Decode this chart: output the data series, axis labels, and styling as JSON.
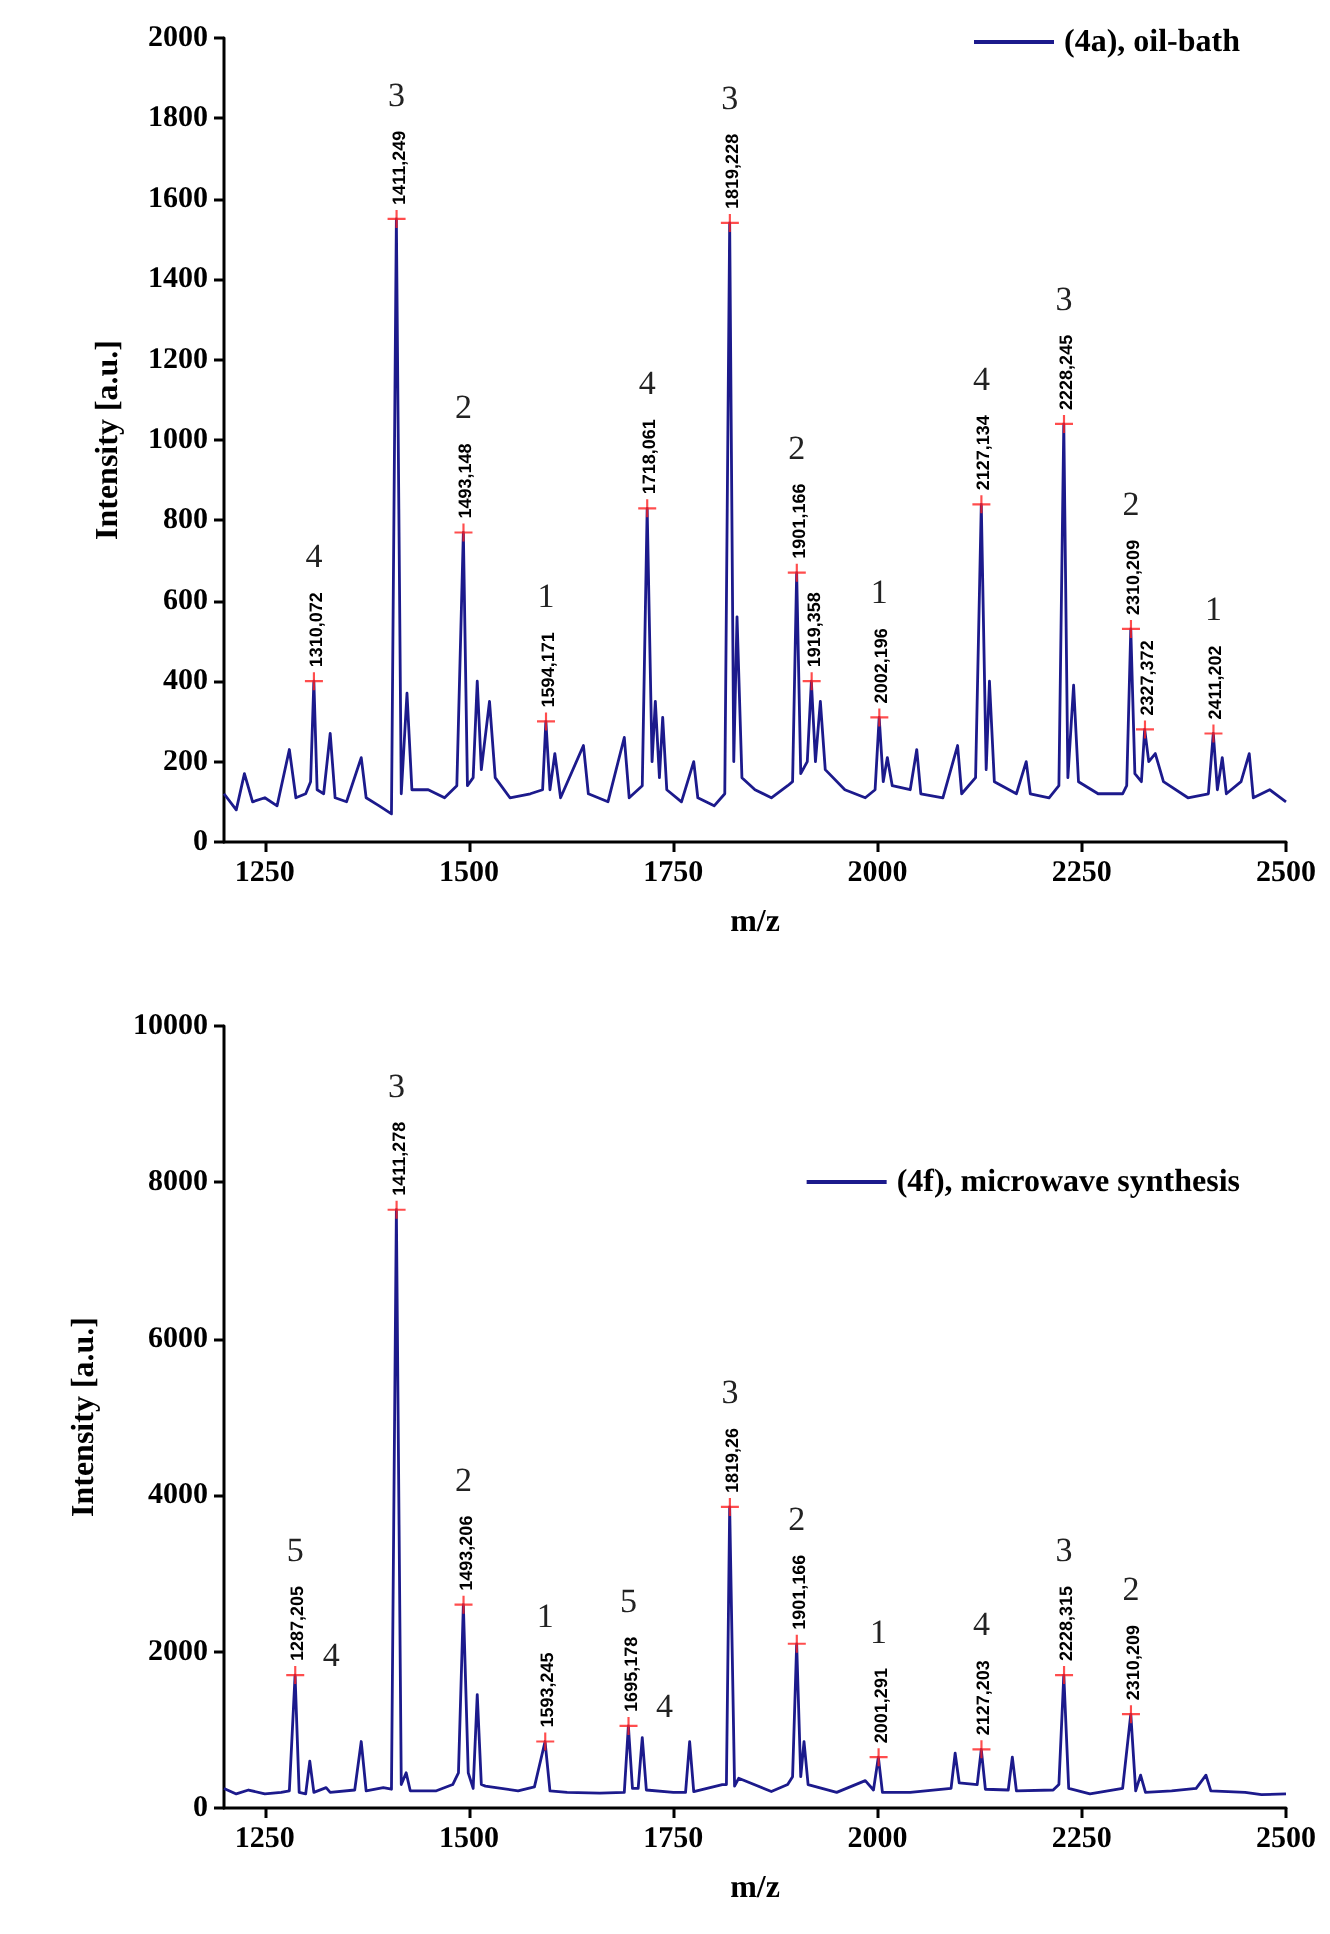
{
  "chart_data": [
    {
      "type": "line",
      "xlabel": "m/z",
      "ylabel": "Intensity [a.u.]",
      "xlim": [
        1200,
        2500
      ],
      "xticks": [
        1250,
        1500,
        1750,
        2000,
        2250,
        2500
      ],
      "ylim": [
        0,
        2000
      ],
      "yticks": [
        0,
        200,
        400,
        600,
        800,
        1000,
        1200,
        1400,
        1600,
        1800,
        2000
      ],
      "legend": "top right",
      "series": [
        {
          "name": "(4a), oil-bath",
          "color": "#1c1a8c",
          "x": [
            1200,
            1215,
            1225,
            1235,
            1250,
            1265,
            1280,
            1288,
            1300,
            1306,
            1310,
            1314,
            1322,
            1330,
            1336,
            1350,
            1368,
            1374,
            1390,
            1405,
            1411,
            1417,
            1424,
            1430,
            1450,
            1470,
            1485,
            1493,
            1498,
            1505,
            1510,
            1515,
            1525,
            1532,
            1550,
            1575,
            1590,
            1594,
            1599,
            1605,
            1612,
            1640,
            1646,
            1670,
            1690,
            1696,
            1712,
            1718,
            1724,
            1728,
            1733,
            1737,
            1742,
            1760,
            1775,
            1780,
            1800,
            1813,
            1819,
            1824,
            1828,
            1834,
            1850,
            1870,
            1890,
            1896,
            1901,
            1906,
            1914,
            1919,
            1924,
            1930,
            1936,
            1960,
            1985,
            1997,
            2002,
            2007,
            2012,
            2018,
            2040,
            2048,
            2053,
            2080,
            2098,
            2103,
            2120,
            2127,
            2133,
            2137,
            2143,
            2170,
            2182,
            2187,
            2210,
            2222,
            2228,
            2233,
            2240,
            2246,
            2270,
            2300,
            2305,
            2310,
            2315,
            2323,
            2327,
            2332,
            2340,
            2350,
            2380,
            2405,
            2411,
            2416,
            2422,
            2427,
            2445,
            2455,
            2460,
            2480,
            2500
          ],
          "values": [
            120,
            80,
            170,
            100,
            110,
            90,
            230,
            110,
            120,
            150,
            400,
            130,
            120,
            270,
            110,
            100,
            210,
            110,
            90,
            70,
            1550,
            120,
            370,
            130,
            130,
            110,
            140,
            770,
            140,
            160,
            400,
            180,
            350,
            160,
            110,
            120,
            130,
            300,
            130,
            220,
            110,
            240,
            120,
            100,
            260,
            110,
            140,
            830,
            200,
            350,
            160,
            310,
            130,
            100,
            200,
            110,
            90,
            120,
            1540,
            200,
            560,
            160,
            130,
            110,
            140,
            150,
            670,
            170,
            200,
            400,
            200,
            350,
            180,
            130,
            110,
            130,
            310,
            150,
            210,
            140,
            130,
            230,
            120,
            110,
            240,
            120,
            160,
            840,
            180,
            400,
            150,
            120,
            200,
            120,
            110,
            140,
            1040,
            160,
            390,
            150,
            120,
            120,
            140,
            530,
            170,
            150,
            280,
            200,
            220,
            150,
            110,
            120,
            270,
            130,
            210,
            120,
            150,
            220,
            110,
            130,
            100
          ]
        },
        {
          "type": "scatter",
          "marker": "cross",
          "color": "#ff2020",
          "x": [
            1310.072,
            1411.249,
            1493.148,
            1594.171,
            1718.061,
            1819.228,
            1901.166,
            1919.358,
            2002.196,
            2127.134,
            2228.245,
            2310.209,
            2327.372,
            2411.202
          ],
          "values": [
            400,
            1550,
            770,
            300,
            830,
            1540,
            670,
            400,
            310,
            840,
            1040,
            530,
            280,
            270
          ]
        }
      ],
      "annotations": [
        {
          "text": "1310,072",
          "x": 1310.072,
          "y": 400
        },
        "4",
        {
          "text": "1411,249",
          "x": 1411.249,
          "y": 1550
        },
        "3",
        {
          "text": "1493,148",
          "x": 1493.148,
          "y": 770
        },
        "2",
        {
          "text": "1594,171",
          "x": 1594.171,
          "y": 300
        },
        "1",
        {
          "text": "1718,061",
          "x": 1718.061,
          "y": 830
        },
        "4",
        {
          "text": "1819,228",
          "x": 1819.228,
          "y": 1540
        },
        "3",
        {
          "text": "1901,166",
          "x": 1901.166,
          "y": 670
        },
        "2",
        {
          "text": "1919,358",
          "x": 1919.358,
          "y": 400
        },
        {
          "text": "2002,196",
          "x": 2002.196,
          "y": 310
        },
        "1",
        {
          "text": "2127,134",
          "x": 2127.134,
          "y": 840
        },
        "4",
        {
          "text": "2228,245",
          "x": 2228.245,
          "y": 1040
        },
        "3",
        {
          "text": "2310,209",
          "x": 2310.209,
          "y": 530
        },
        "2",
        {
          "text": "2327,372",
          "x": 2327.372,
          "y": 280
        },
        {
          "text": "2411,202",
          "x": 2411.202,
          "y": 270
        },
        "1"
      ]
    },
    {
      "type": "line",
      "xlabel": "m/z",
      "ylabel": "Intensity [a.u.]",
      "xlim": [
        1200,
        2500
      ],
      "xticks": [
        1250,
        1500,
        1750,
        2000,
        2250,
        2500
      ],
      "ylim": [
        0,
        10000
      ],
      "yticks": [
        0,
        2000,
        4000,
        6000,
        8000,
        10000
      ],
      "legend": "top right",
      "series": [
        {
          "name": "(4f), microwave synthesis",
          "color": "#1c1a8c",
          "x": [
            1200,
            1215,
            1230,
            1250,
            1270,
            1280,
            1287,
            1292,
            1300,
            1305,
            1310,
            1325,
            1330,
            1360,
            1368,
            1374,
            1395,
            1405,
            1411,
            1417,
            1423,
            1428,
            1460,
            1480,
            1487,
            1493,
            1499,
            1505,
            1510,
            1515,
            1520,
            1560,
            1580,
            1593,
            1599,
            1620,
            1660,
            1690,
            1695,
            1700,
            1707,
            1712,
            1717,
            1750,
            1765,
            1770,
            1775,
            1810,
            1815,
            1819,
            1825,
            1830,
            1870,
            1890,
            1896,
            1901,
            1906,
            1910,
            1915,
            1950,
            1985,
            1995,
            2001,
            2006,
            2040,
            2090,
            2095,
            2100,
            2122,
            2127,
            2132,
            2160,
            2165,
            2170,
            2215,
            2222,
            2228,
            2234,
            2260,
            2300,
            2310,
            2316,
            2322,
            2328,
            2360,
            2390,
            2402,
            2408,
            2450,
            2470,
            2500
          ],
          "values": [
            250,
            180,
            230,
            180,
            200,
            220,
            1700,
            200,
            180,
            600,
            200,
            260,
            200,
            230,
            850,
            220,
            260,
            240,
            7650,
            300,
            450,
            220,
            220,
            300,
            450,
            2600,
            450,
            250,
            1450,
            300,
            280,
            220,
            270,
            850,
            220,
            200,
            190,
            200,
            1050,
            250,
            250,
            900,
            230,
            200,
            200,
            850,
            210,
            300,
            300,
            3850,
            280,
            380,
            210,
            300,
            400,
            2100,
            400,
            850,
            300,
            200,
            350,
            230,
            650,
            200,
            200,
            250,
            700,
            320,
            300,
            750,
            240,
            230,
            650,
            220,
            230,
            300,
            1700,
            250,
            180,
            250,
            1200,
            220,
            420,
            200,
            220,
            250,
            420,
            220,
            200,
            170,
            180
          ]
        },
        {
          "type": "scatter",
          "marker": "cross",
          "color": "#ff2020",
          "x": [
            1287.205,
            1411.278,
            1493.206,
            1593.245,
            1695.178,
            1819.26,
            1901.166,
            2001.291,
            2127.203,
            2228.315,
            2310.209
          ],
          "values": [
            1700,
            7650,
            2600,
            850,
            1050,
            3850,
            2100,
            650,
            750,
            1700,
            1200
          ]
        }
      ],
      "annotations": [
        {
          "text": "1287,205",
          "x": 1287.205,
          "y": 1700
        },
        "5",
        "4",
        {
          "text": "1411,278",
          "x": 1411.278,
          "y": 7650
        },
        "3",
        {
          "text": "1493,206",
          "x": 1493.206,
          "y": 2600
        },
        "2",
        {
          "text": "1593,245",
          "x": 1593.245,
          "y": 850
        },
        "1",
        {
          "text": "1695,178",
          "x": 1695.178,
          "y": 1050
        },
        "5",
        "4",
        {
          "text": "1819,26",
          "x": 1819.26,
          "y": 3850
        },
        "3",
        {
          "text": "1901,166",
          "x": 1901.166,
          "y": 2100
        },
        "2",
        {
          "text": "2001,291",
          "x": 2001.291,
          "y": 650
        },
        "1",
        {
          "text": "2127,203",
          "x": 2127.203,
          "y": 750
        },
        "4",
        {
          "text": "2228,315",
          "x": 2228.315,
          "y": 1700
        },
        "3",
        {
          "text": "2310,209",
          "x": 2310.209,
          "y": 1200
        },
        "2"
      ]
    }
  ]
}
